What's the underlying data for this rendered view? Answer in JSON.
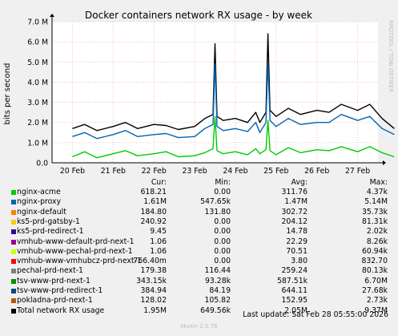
{
  "chart_data": {
    "type": "line",
    "title": "Docker containers network RX usage - by week",
    "ylabel": "bits per second",
    "xlabel": "",
    "ylim": [
      0,
      7000000
    ],
    "y_tick_values": [
      0,
      1000000,
      2000000,
      3000000,
      4000000,
      5000000,
      6000000,
      7000000
    ],
    "y_tick_labels": [
      "0.0",
      "1.0 M",
      "2.0 M",
      "3.0 M",
      "4.0 M",
      "5.0 M",
      "6.0 M",
      "7.0 M"
    ],
    "x_range": [
      "2026-02-20",
      "2026-02-28"
    ],
    "x_tick_labels": [
      "20 Feb",
      "21 Feb",
      "22 Feb",
      "23 Feb",
      "24 Feb",
      "25 Feb",
      "26 Feb",
      "27 Feb"
    ],
    "grid": true,
    "side_label": "RRDTOOL / TOBI OETIKER",
    "series": [
      {
        "name": "Total network RX usage",
        "color": "#000000",
        "x": [
          0,
          0.3,
          0.6,
          1.0,
          1.3,
          1.6,
          2.0,
          2.3,
          2.6,
          3.0,
          3.25,
          3.45,
          3.5,
          3.55,
          3.7,
          4.0,
          4.3,
          4.5,
          4.6,
          4.75,
          4.8,
          4.85,
          5.0,
          5.3,
          5.6,
          6.0,
          6.3,
          6.6,
          7.0,
          7.3,
          7.6,
          7.9
        ],
        "values": [
          1700000,
          1900000,
          1600000,
          1800000,
          2000000,
          1700000,
          1900000,
          1850000,
          1650000,
          1800000,
          2200000,
          2400000,
          5900000,
          2300000,
          2100000,
          2200000,
          2000000,
          2500000,
          2000000,
          2500000,
          6400000,
          2600000,
          2300000,
          2700000,
          2400000,
          2600000,
          2500000,
          2900000,
          2600000,
          2900000,
          2200000,
          1700000
        ]
      },
      {
        "name": "nginx-proxy",
        "color": "#0066b3",
        "x": [
          0,
          0.3,
          0.6,
          1.0,
          1.3,
          1.6,
          2.0,
          2.3,
          2.6,
          3.0,
          3.25,
          3.45,
          3.5,
          3.55,
          3.7,
          4.0,
          4.3,
          4.5,
          4.6,
          4.75,
          4.8,
          4.85,
          5.0,
          5.3,
          5.6,
          6.0,
          6.3,
          6.6,
          7.0,
          7.3,
          7.6,
          7.9
        ],
        "values": [
          1300000,
          1500000,
          1200000,
          1400000,
          1600000,
          1300000,
          1400000,
          1450000,
          1250000,
          1300000,
          1700000,
          1900000,
          4900000,
          1800000,
          1600000,
          1700000,
          1550000,
          2000000,
          1500000,
          2000000,
          5000000,
          2100000,
          1800000,
          2200000,
          1900000,
          2000000,
          2000000,
          2400000,
          2100000,
          2300000,
          1700000,
          1400000
        ]
      },
      {
        "name": "nginx-acme",
        "color": "#00cc00",
        "x": [
          0,
          0.3,
          0.6,
          1.0,
          1.3,
          1.6,
          2.0,
          2.3,
          2.6,
          3.0,
          3.25,
          3.45,
          3.5,
          3.55,
          3.7,
          4.0,
          4.3,
          4.5,
          4.6,
          4.75,
          4.8,
          4.85,
          5.0,
          5.3,
          5.6,
          6.0,
          6.3,
          6.6,
          7.0,
          7.3,
          7.6,
          7.9
        ],
        "values": [
          300000,
          550000,
          250000,
          450000,
          600000,
          350000,
          450000,
          550000,
          300000,
          350000,
          500000,
          700000,
          2300000,
          600000,
          450000,
          550000,
          400000,
          700000,
          450000,
          650000,
          2100000,
          600000,
          400000,
          750000,
          500000,
          650000,
          600000,
          800000,
          550000,
          800000,
          500000,
          300000
        ]
      }
    ]
  },
  "legend": {
    "headers": {
      "cur": "Cur:",
      "min": "Min:",
      "avg": "Avg:",
      "max": "Max:"
    },
    "rows": [
      {
        "name": "nginx-acme",
        "color": "#00cc00",
        "cur": "618.21",
        "min": "0.00",
        "avg": "311.76",
        "max": "4.37k"
      },
      {
        "name": "nginx-proxy",
        "color": "#0066b3",
        "cur": "1.61M",
        "min": "547.65k",
        "avg": "1.47M",
        "max": "5.14M"
      },
      {
        "name": "nginx-default",
        "color": "#ff8000",
        "cur": "184.80",
        "min": "131.80",
        "avg": "302.72",
        "max": "35.73k"
      },
      {
        "name": "ks5-prd-gatsby-1",
        "color": "#ffcc00",
        "cur": "240.92",
        "min": "0.00",
        "avg": "204.12",
        "max": "81.31k"
      },
      {
        "name": "ks5-prd-redirect-1",
        "color": "#330099",
        "cur": "9.45",
        "min": "0.00",
        "avg": "14.78",
        "max": "2.02k"
      },
      {
        "name": "vmhub-www-default-prd-next-1",
        "color": "#990099",
        "cur": "1.06",
        "min": "0.00",
        "avg": "22.29",
        "max": "8.26k"
      },
      {
        "name": "vmhub-www-pechal-prd-next-1",
        "color": "#ccff00",
        "cur": "1.06",
        "min": "0.00",
        "avg": "70.51",
        "max": "60.94k"
      },
      {
        "name": "vmhub-www-vmhubcz-prd-next-1",
        "color": "#ff0000",
        "cur": "766.40m",
        "min": "0.00",
        "avg": "3.80",
        "max": "832.70"
      },
      {
        "name": "pechal-prd-next-1",
        "color": "#808080",
        "cur": "179.38",
        "min": "116.44",
        "avg": "259.24",
        "max": "80.13k"
      },
      {
        "name": "tsv-www-prd-next-1",
        "color": "#008f00",
        "cur": "343.15k",
        "min": "93.28k",
        "avg": "587.51k",
        "max": "6.70M"
      },
      {
        "name": "tsv-www-prd-redirect-1",
        "color": "#00487d",
        "cur": "384.94",
        "min": "84.19",
        "avg": "644.11",
        "max": "27.68k"
      },
      {
        "name": "pokladna-prd-next-1",
        "color": "#b35a00",
        "cur": "128.02",
        "min": "105.82",
        "avg": "152.95",
        "max": "2.73k"
      },
      {
        "name": "Total network RX usage",
        "color": "#000000",
        "cur": "1.95M",
        "min": "649.56k",
        "avg": "2.05M",
        "max": "9.37M"
      }
    ]
  },
  "footer": {
    "last_update": "Last update: Sat Feb 28 05:55:00 2026",
    "munin": "Munin 2.0.76"
  }
}
